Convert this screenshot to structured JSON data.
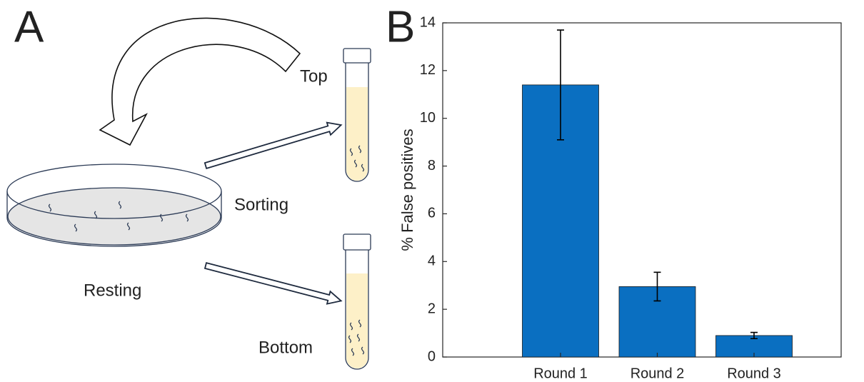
{
  "panels": [
    "A",
    "B"
  ],
  "diagram": {
    "top": "Top",
    "sorting": "Sorting",
    "resting": "Resting",
    "bottom": "Bottom"
  },
  "chart_data": {
    "type": "bar",
    "ylabel": "% False positives",
    "categories": [
      "Round 1",
      "Round 2",
      "Round 3"
    ],
    "values": [
      11.4,
      2.95,
      0.9
    ],
    "errors": [
      2.3,
      0.6,
      0.13
    ],
    "color": "#0a6fc1",
    "ylim": [
      0,
      14
    ],
    "yticks": [
      0,
      2,
      4,
      6,
      8,
      10,
      12,
      14
    ]
  }
}
